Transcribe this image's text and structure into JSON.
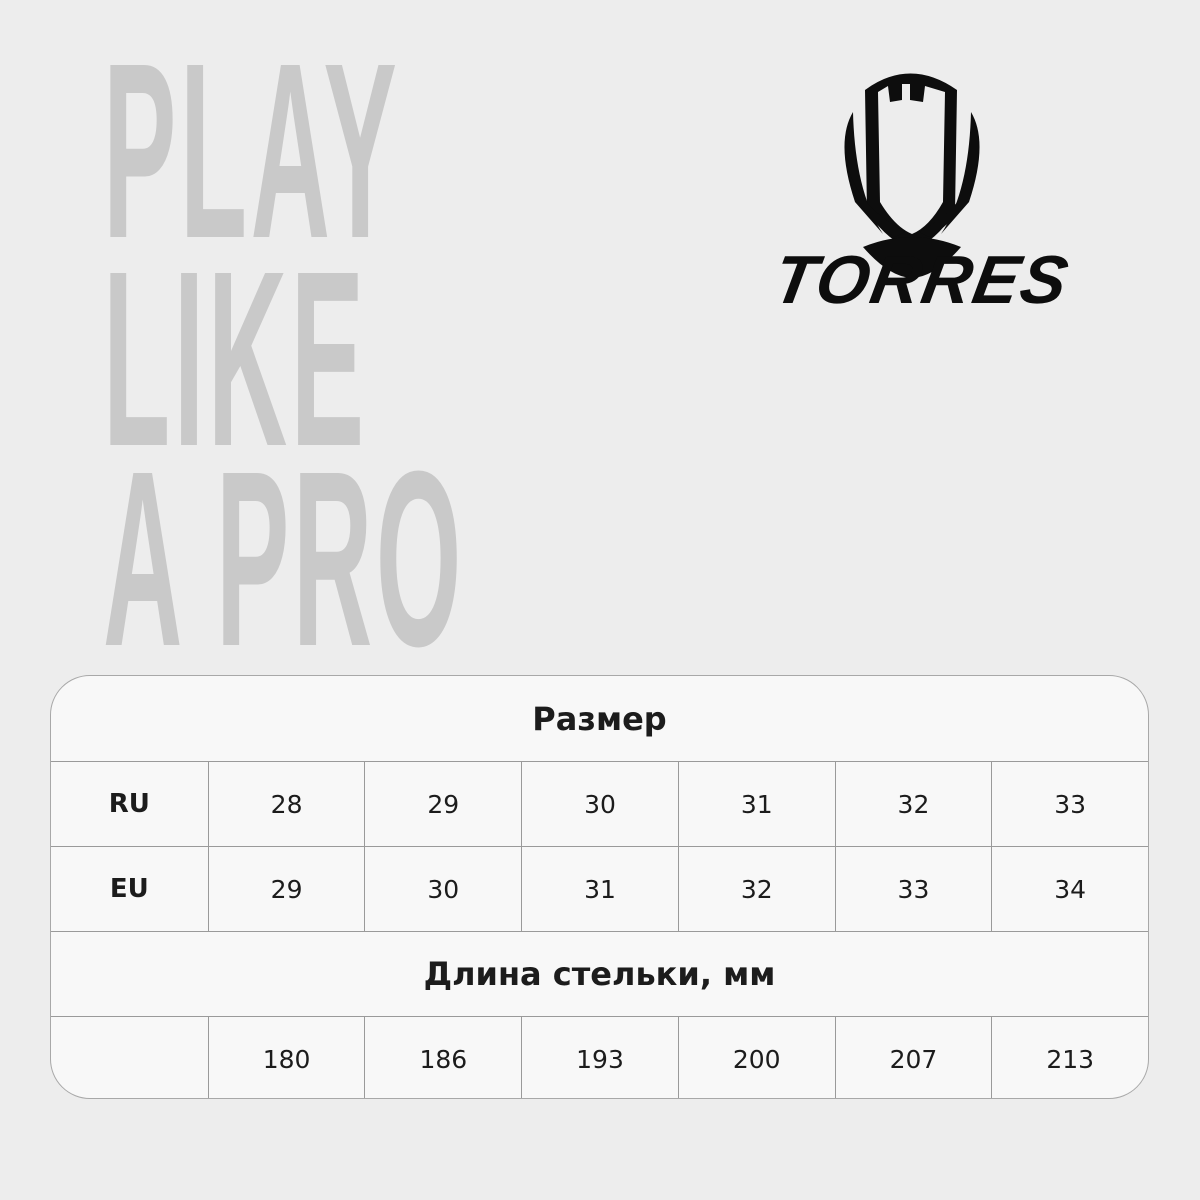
{
  "slogan": {
    "line1": "PLAY",
    "line2": "LIKE",
    "line3": "A PRO"
  },
  "brand": {
    "name": "TORRES",
    "logo_icon": "torres-shield-icon"
  },
  "colors": {
    "background": "#ededed",
    "slogan": "#c9c9c9",
    "table_bg": "#f8f8f8",
    "text": "#1c1c1c"
  },
  "size_table": {
    "title": "Размер",
    "rows": [
      {
        "label": "RU",
        "values": [
          "28",
          "29",
          "30",
          "31",
          "32",
          "33"
        ]
      },
      {
        "label": "EU",
        "values": [
          "29",
          "30",
          "31",
          "32",
          "33",
          "34"
        ]
      }
    ],
    "insole_title": "Длина стельки, мм",
    "insole": {
      "label": "",
      "values": [
        "180",
        "186",
        "193",
        "200",
        "207",
        "213"
      ]
    }
  }
}
